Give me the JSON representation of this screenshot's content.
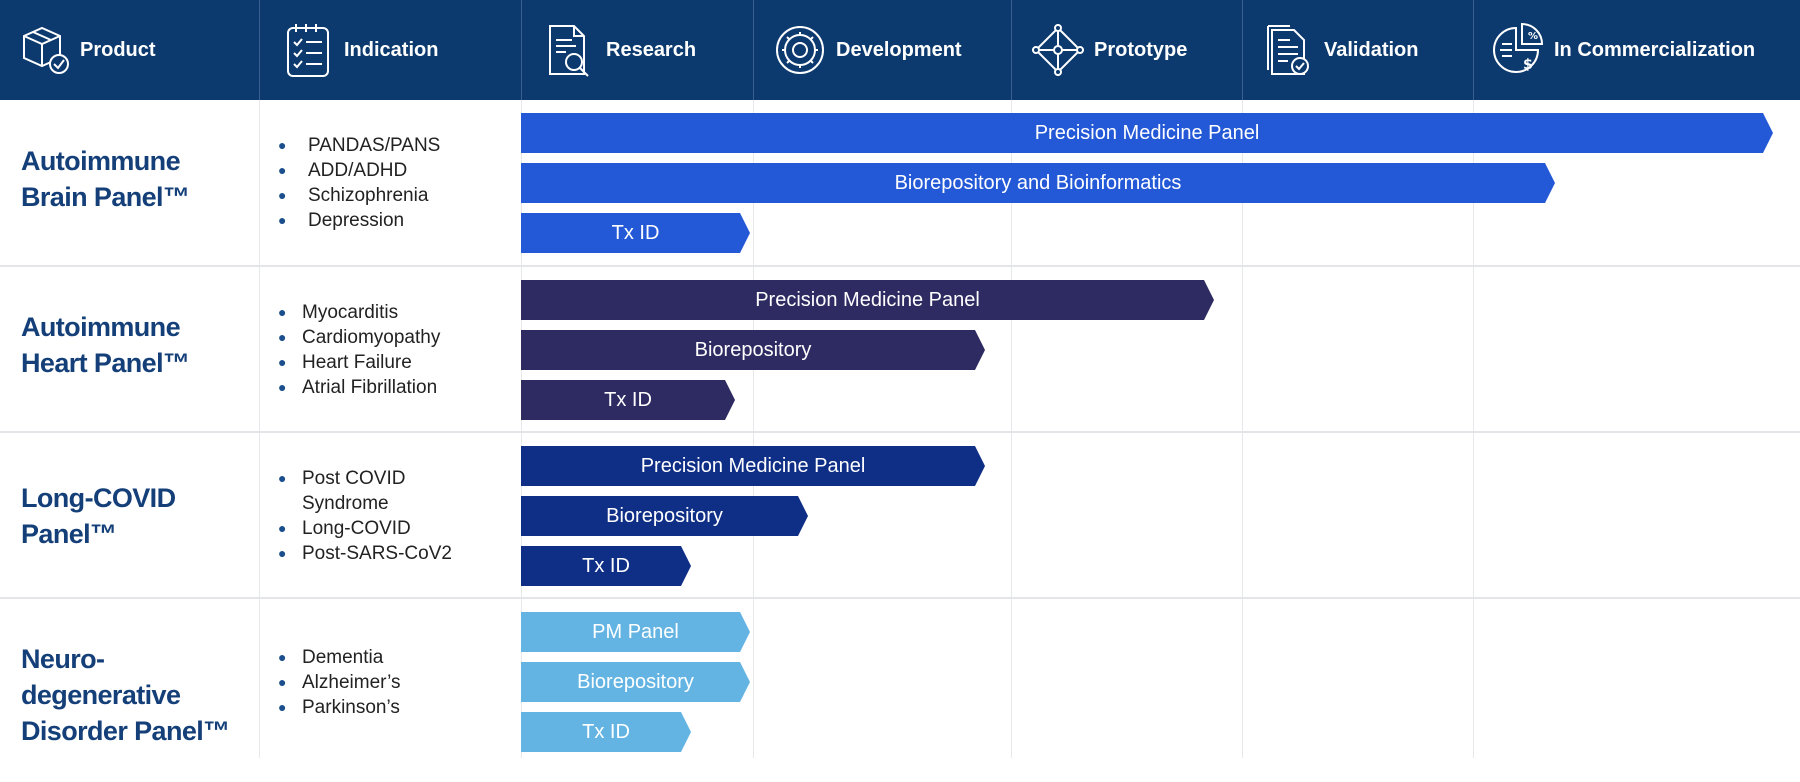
{
  "header": {
    "columns": [
      {
        "label": "Product",
        "icon": "package-check-icon"
      },
      {
        "label": "Indication",
        "icon": "checklist-icon"
      },
      {
        "label": "Research",
        "icon": "document-search-icon"
      },
      {
        "label": "Development",
        "icon": "gear-icon"
      },
      {
        "label": "Prototype",
        "icon": "network-diamond-icon"
      },
      {
        "label": "Validation",
        "icon": "document-check-icon"
      },
      {
        "label": "In Commercialization",
        "icon": "pie-chart-dollar-icon"
      }
    ]
  },
  "colors": {
    "header_bg": "#0d3a6e",
    "brain": "#2358d6",
    "heart": "#2e2a62",
    "covid": "#0f2f86",
    "neuro": "#63b4e3",
    "product_text": "#143f78"
  },
  "rows": [
    {
      "product": [
        "Autoimmune",
        "Brain Panel™"
      ],
      "indications": [
        "PANDAS/PANS",
        "ADD/ADHD",
        "Schizophrenia",
        "Depression"
      ],
      "bars": [
        {
          "label": "Precision Medicine Panel"
        },
        {
          "label": "Biorepository and Bioinformatics"
        },
        {
          "label": "Tx ID"
        }
      ]
    },
    {
      "product": [
        "Autoimmune",
        "Heart Panel™"
      ],
      "indications": [
        "Myocarditis",
        "Cardiomyopathy",
        "Heart Failure",
        "Atrial Fibrillation"
      ],
      "bars": [
        {
          "label": "Precision Medicine Panel"
        },
        {
          "label": "Biorepository"
        },
        {
          "label": "Tx ID"
        }
      ]
    },
    {
      "product": [
        "Long-COVID",
        "Panel™"
      ],
      "indications": [
        "Post COVID",
        "Syndrome",
        "Long-COVID",
        "Post-SARS-CoV2"
      ],
      "bars": [
        {
          "label": "Precision Medicine Panel"
        },
        {
          "label": "Biorepository"
        },
        {
          "label": "Tx ID"
        }
      ]
    },
    {
      "product": [
        "Neuro-degenerative",
        "Disorder Panel™"
      ],
      "indications": [
        "Dementia",
        "Alzheimer’s",
        "Parkinson’s"
      ],
      "bars": [
        {
          "label": "PM Panel"
        },
        {
          "label": "Biorepository"
        },
        {
          "label": "Tx ID"
        }
      ]
    }
  ]
}
